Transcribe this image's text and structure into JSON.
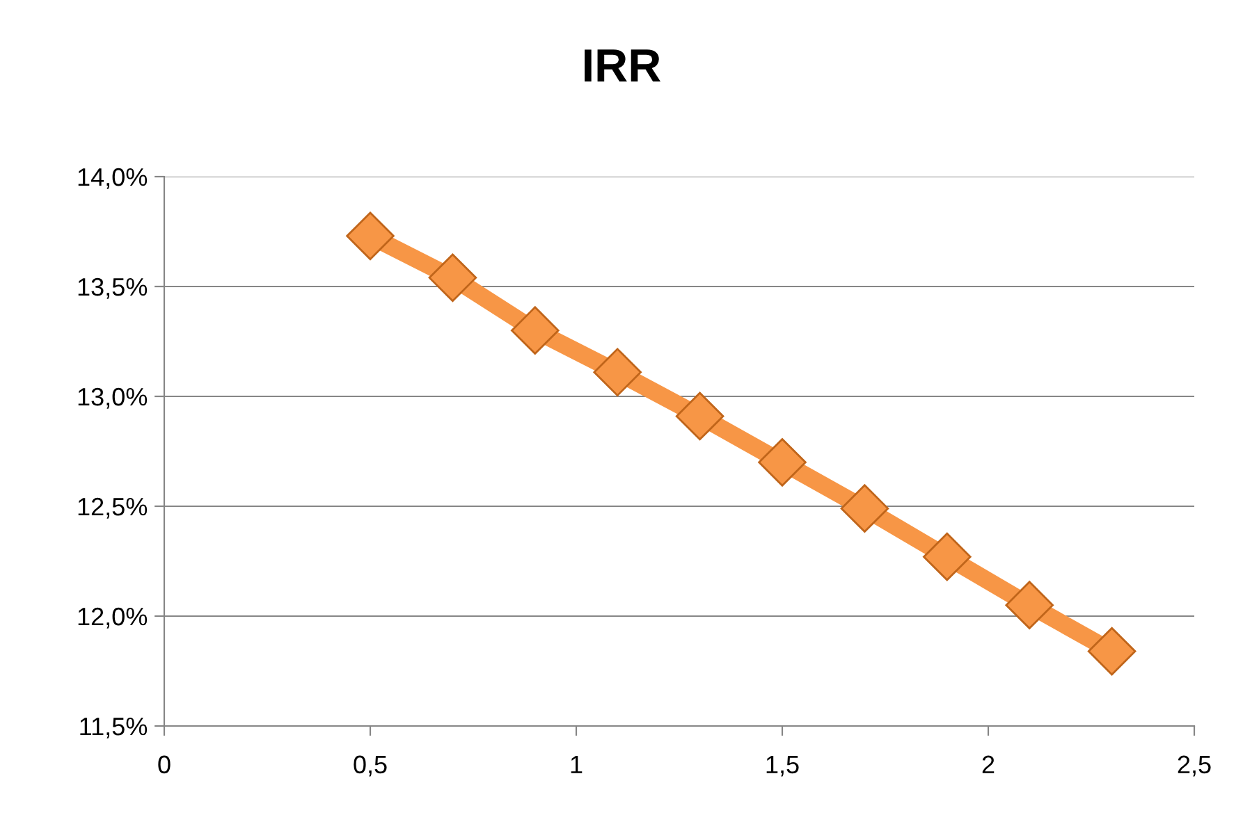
{
  "chart_data": {
    "type": "line",
    "title": "IRR",
    "x": [
      0.5,
      0.7,
      0.9,
      1.1,
      1.3,
      1.5,
      1.7,
      1.9,
      2.1,
      2.3
    ],
    "series": [
      {
        "color": "#f79646",
        "values": [
          13.73,
          13.54,
          13.3,
          13.11,
          12.91,
          12.7,
          12.49,
          12.27,
          12.05,
          11.84
        ]
      }
    ],
    "xlim": [
      0,
      2.5
    ],
    "xticks": [
      0,
      {
        "value": 0.5,
        "label": "0,5"
      },
      1,
      {
        "value": 1.5,
        "label": "1,5"
      },
      2,
      {
        "value": 2.5,
        "label": "2,5"
      }
    ],
    "ylim": [
      11.5,
      14.0
    ],
    "yticks": [
      {
        "value": 11.5,
        "label": "11,5%"
      },
      {
        "value": 12.0,
        "label": "12,0%"
      },
      {
        "value": 12.5,
        "label": "12,5%"
      },
      {
        "value": 13.0,
        "label": "13,0%"
      },
      {
        "value": 13.5,
        "label": "13,5%"
      },
      {
        "value": 14.0,
        "label": "14,0%"
      }
    ],
    "grid": "y",
    "marker": "diamond",
    "line_style": "solid",
    "legend": false
  }
}
